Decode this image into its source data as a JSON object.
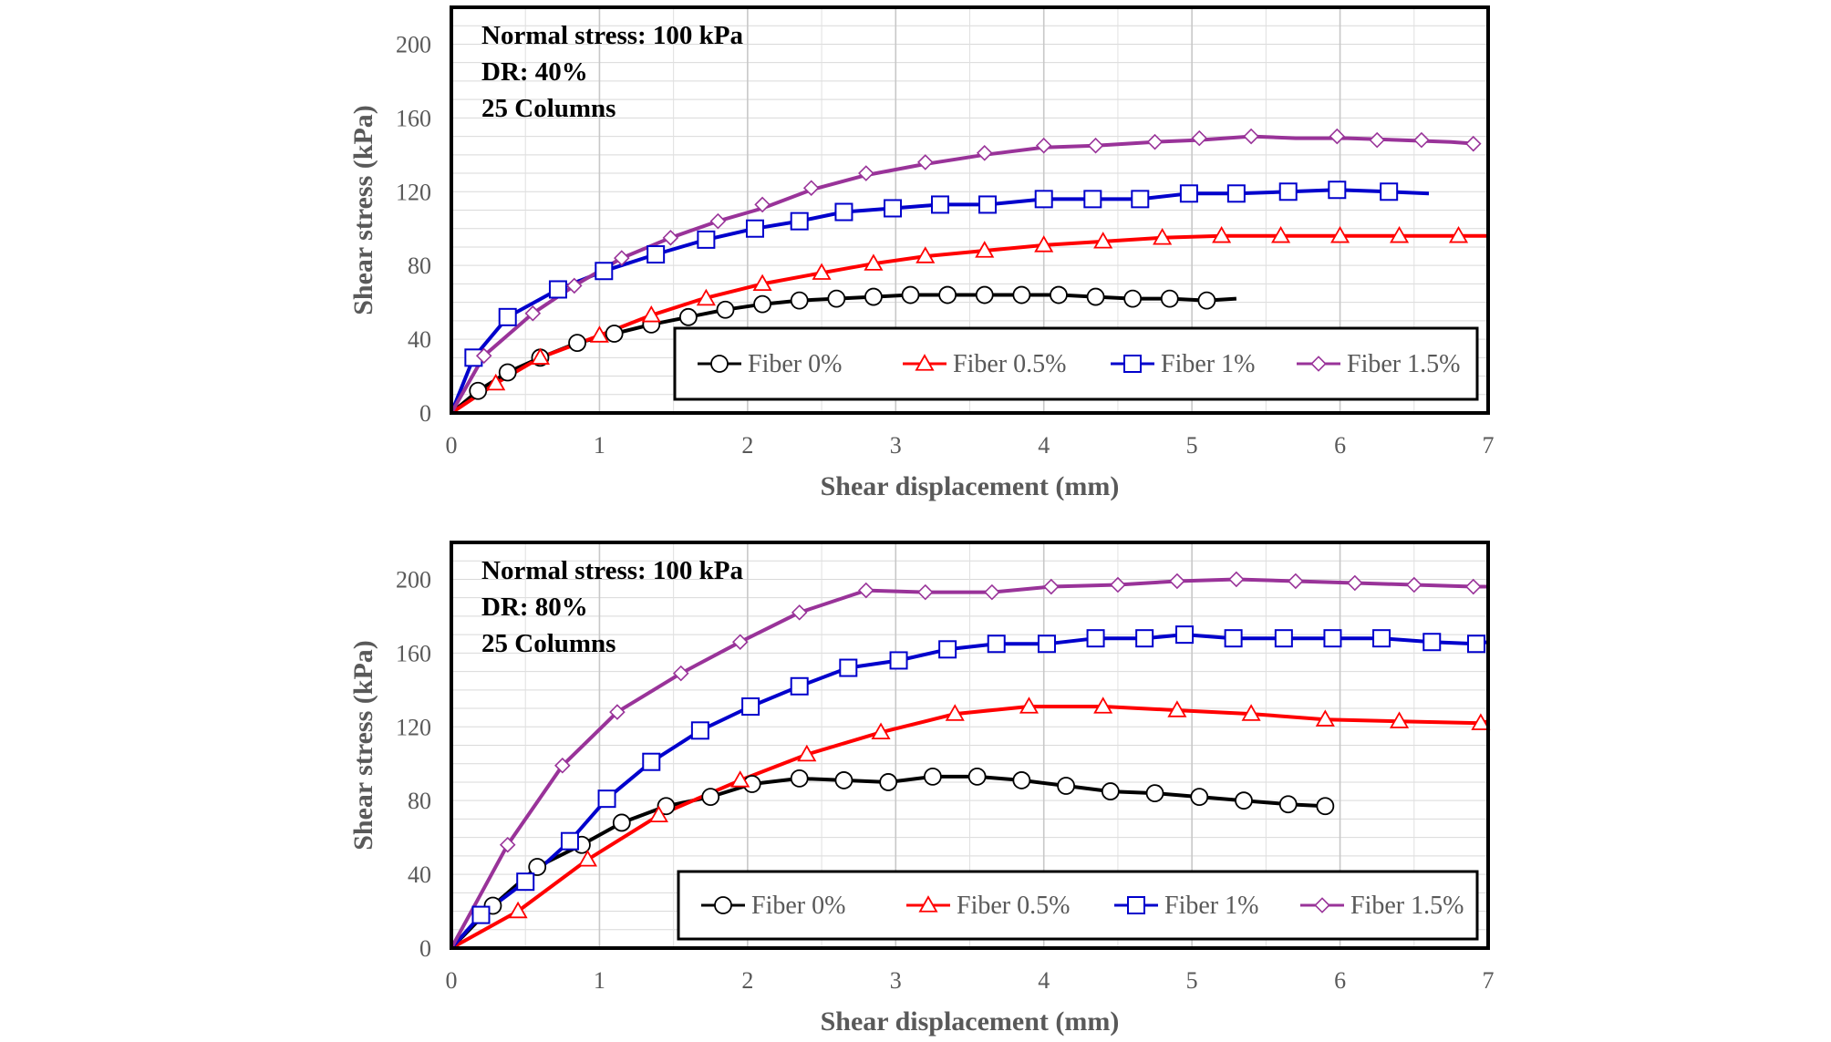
{
  "chart_data": [
    {
      "type": "line",
      "annotations": [
        "Normal stress: 100 kPa",
        "DR: 40%",
        "25 Columns"
      ],
      "xlabel": "Shear displacement (mm)",
      "ylabel": "Shear stress (kPa)",
      "xlim": [
        0,
        7
      ],
      "ylim": [
        0,
        220
      ],
      "x_ticks": [
        0,
        1,
        2,
        3,
        4,
        5,
        6,
        7
      ],
      "y_ticks": [
        0,
        40,
        80,
        120,
        160,
        200
      ],
      "grid": true,
      "legend_position": "bottom-right",
      "series": [
        {
          "name": "Fiber 0%",
          "color": "#000000",
          "marker": "circle",
          "x": [
            0,
            0.18,
            0.38,
            0.6,
            0.85,
            1.1,
            1.35,
            1.6,
            1.85,
            2.1,
            2.35,
            2.6,
            2.85,
            3.1,
            3.35,
            3.6,
            3.85,
            4.1,
            4.35,
            4.6,
            4.85,
            5.1,
            5.3
          ],
          "y": [
            0,
            12,
            22,
            30,
            38,
            43,
            48,
            52,
            56,
            59,
            61,
            62,
            63,
            64,
            64,
            64,
            64,
            64,
            63,
            62,
            62,
            61,
            62
          ],
          "marker_x": [
            0.18,
            0.38,
            0.6,
            0.85,
            1.1,
            1.35,
            1.6,
            1.85,
            2.1,
            2.35,
            2.6,
            2.85,
            3.1,
            3.35,
            3.6,
            3.85,
            4.1,
            4.35,
            4.6,
            4.85,
            5.1
          ],
          "marker_y": [
            12,
            22,
            30,
            38,
            43,
            48,
            52,
            56,
            59,
            61,
            62,
            63,
            64,
            64,
            64,
            64,
            64,
            63,
            62,
            62,
            61
          ]
        },
        {
          "name": "Fiber 0.5%",
          "color": "#ff0000",
          "marker": "triangle",
          "x": [
            0,
            0.3,
            0.6,
            1.0,
            1.35,
            1.7,
            2.1,
            2.5,
            2.85,
            3.2,
            3.6,
            4.0,
            4.4,
            4.8,
            5.2,
            5.6,
            6.0,
            6.4,
            6.8,
            7.0
          ],
          "y": [
            0,
            16,
            30,
            42,
            53,
            62,
            70,
            76,
            81,
            85,
            88,
            91,
            93,
            95,
            96,
            96,
            96,
            96,
            96,
            96
          ],
          "marker_x": [
            0.3,
            0.6,
            1.0,
            1.35,
            1.72,
            2.1,
            2.5,
            2.85,
            3.2,
            3.6,
            4.0,
            4.4,
            4.8,
            5.2,
            5.6,
            6.0,
            6.4,
            6.8
          ],
          "marker_y": [
            16,
            30,
            42,
            53,
            62,
            70,
            76,
            81,
            85,
            88,
            91,
            93,
            95,
            96,
            96,
            96,
            96,
            96
          ]
        },
        {
          "name": "Fiber 1%",
          "color": "#0000cc",
          "marker": "square",
          "x": [
            0,
            0.15,
            0.38,
            0.72,
            1.03,
            1.38,
            1.72,
            2.05,
            2.35,
            2.65,
            2.98,
            3.3,
            3.62,
            4.0,
            4.33,
            4.65,
            4.98,
            5.3,
            5.65,
            5.98,
            6.33,
            6.6
          ],
          "y": [
            0,
            30,
            52,
            67,
            77,
            86,
            94,
            100,
            104,
            109,
            111,
            113,
            113,
            116,
            116,
            116,
            119,
            119,
            120,
            121,
            120,
            119
          ],
          "marker_x": [
            0.15,
            0.38,
            0.72,
            1.03,
            1.38,
            1.72,
            2.05,
            2.35,
            2.65,
            2.98,
            3.3,
            3.62,
            4.0,
            4.33,
            4.65,
            4.98,
            5.3,
            5.65,
            5.98,
            6.33
          ],
          "marker_y": [
            30,
            52,
            67,
            77,
            86,
            94,
            100,
            104,
            109,
            111,
            113,
            113,
            116,
            116,
            116,
            119,
            119,
            120,
            121,
            120
          ]
        },
        {
          "name": "Fiber 1.5%",
          "color": "#993399",
          "marker": "diamond",
          "x": [
            0,
            0.22,
            0.55,
            0.83,
            1.15,
            1.48,
            1.8,
            2.1,
            2.43,
            2.8,
            3.2,
            3.6,
            4.0,
            4.35,
            4.75,
            5.05,
            5.4,
            5.7,
            6.05,
            6.4,
            6.75,
            6.92
          ],
          "y": [
            0,
            31,
            54,
            69,
            84,
            95,
            104,
            111,
            121,
            129,
            135,
            140,
            144,
            145,
            147,
            148,
            150,
            149,
            149,
            148,
            147,
            146
          ],
          "marker_x": [
            0.22,
            0.55,
            0.83,
            1.15,
            1.48,
            1.8,
            2.1,
            2.43,
            2.8,
            3.2,
            3.6,
            4.0,
            4.35,
            4.75,
            5.05,
            5.4,
            5.98,
            6.25,
            6.55,
            6.9
          ],
          "marker_y": [
            31,
            54,
            69,
            84,
            95,
            104,
            113,
            122,
            130,
            136,
            141,
            145,
            145,
            147,
            149,
            150,
            150,
            148,
            148,
            146
          ]
        }
      ]
    },
    {
      "type": "line",
      "annotations": [
        "Normal stress: 100 kPa",
        "DR: 80%",
        "25 Columns"
      ],
      "xlabel": "Shear displacement (mm)",
      "ylabel": "Shear stress (kPa)",
      "xlim": [
        0,
        7
      ],
      "ylim": [
        0,
        220
      ],
      "x_ticks": [
        0,
        1,
        2,
        3,
        4,
        5,
        6,
        7
      ],
      "y_ticks": [
        0,
        40,
        80,
        120,
        160,
        200
      ],
      "grid": true,
      "legend_position": "bottom-right",
      "series": [
        {
          "name": "Fiber 0%",
          "color": "#000000",
          "marker": "circle",
          "x": [
            0,
            0.28,
            0.58,
            0.88,
            1.15,
            1.45,
            1.75,
            2.03,
            2.35,
            2.65,
            2.95,
            3.25,
            3.55,
            3.85,
            4.15,
            4.45,
            4.75,
            5.05,
            5.35,
            5.65,
            5.9
          ],
          "y": [
            0,
            23,
            44,
            56,
            68,
            77,
            82,
            89,
            92,
            91,
            90,
            93,
            93,
            91,
            88,
            85,
            84,
            82,
            80,
            78,
            77
          ],
          "marker_x": [
            0.28,
            0.58,
            0.88,
            1.15,
            1.45,
            1.75,
            2.03,
            2.35,
            2.65,
            2.95,
            3.25,
            3.55,
            3.85,
            4.15,
            4.45,
            4.75,
            5.05,
            5.35,
            5.65,
            5.9
          ],
          "marker_y": [
            23,
            44,
            56,
            68,
            77,
            82,
            89,
            92,
            91,
            90,
            93,
            93,
            91,
            88,
            85,
            84,
            82,
            80,
            78,
            77
          ]
        },
        {
          "name": "Fiber 0.5%",
          "color": "#ff0000",
          "marker": "triangle",
          "x": [
            0,
            0.45,
            0.92,
            1.4,
            1.95,
            2.4,
            2.9,
            3.4,
            3.9,
            4.4,
            4.9,
            5.4,
            5.9,
            6.4,
            6.95,
            7.0
          ],
          "y": [
            0,
            20,
            48,
            72,
            91,
            105,
            117,
            127,
            131,
            131,
            129,
            127,
            124,
            123,
            122,
            123
          ],
          "marker_x": [
            0.45,
            0.92,
            1.4,
            1.95,
            2.4,
            2.9,
            3.4,
            3.9,
            4.4,
            4.9,
            5.4,
            5.9,
            6.4,
            6.95
          ],
          "marker_y": [
            20,
            48,
            72,
            91,
            105,
            117,
            127,
            131,
            131,
            129,
            127,
            124,
            123,
            122
          ]
        },
        {
          "name": "Fiber 1%",
          "color": "#0000cc",
          "marker": "square",
          "x": [
            0,
            0.2,
            0.5,
            0.8,
            1.05,
            1.35,
            1.68,
            2.02,
            2.35,
            2.68,
            3.02,
            3.35,
            3.68,
            4.02,
            4.35,
            4.68,
            4.95,
            5.28,
            5.62,
            5.95,
            6.28,
            6.62,
            6.92,
            7.0
          ],
          "y": [
            0,
            18,
            36,
            58,
            81,
            101,
            118,
            131,
            142,
            152,
            156,
            162,
            165,
            165,
            168,
            168,
            170,
            168,
            168,
            168,
            168,
            166,
            165,
            166
          ],
          "marker_x": [
            0.2,
            0.5,
            0.8,
            1.05,
            1.35,
            1.68,
            2.02,
            2.35,
            2.68,
            3.02,
            3.35,
            3.68,
            4.02,
            4.35,
            4.68,
            4.95,
            5.28,
            5.62,
            5.95,
            6.28,
            6.62,
            6.92
          ],
          "marker_y": [
            18,
            36,
            58,
            81,
            101,
            118,
            131,
            142,
            152,
            156,
            162,
            165,
            165,
            168,
            168,
            170,
            168,
            168,
            168,
            168,
            166,
            165
          ]
        },
        {
          "name": "Fiber 1.5%",
          "color": "#993399",
          "marker": "diamond",
          "x": [
            0,
            0.38,
            0.75,
            1.12,
            1.55,
            1.95,
            2.35,
            2.8,
            3.2,
            3.65,
            4.05,
            4.5,
            4.9,
            5.3,
            5.7,
            6.1,
            6.5,
            6.9,
            7.0
          ],
          "y": [
            0,
            56,
            99,
            128,
            149,
            166,
            182,
            194,
            193,
            193,
            196,
            197,
            199,
            200,
            199,
            198,
            197,
            196,
            196
          ],
          "marker_x": [
            0.38,
            0.75,
            1.12,
            1.55,
            1.95,
            2.35,
            2.8,
            3.2,
            3.65,
            4.05,
            4.5,
            4.9,
            5.3,
            5.7,
            6.1,
            6.5,
            6.9
          ],
          "marker_y": [
            56,
            99,
            128,
            149,
            166,
            182,
            194,
            193,
            193,
            196,
            197,
            199,
            200,
            199,
            198,
            197,
            196
          ]
        }
      ]
    }
  ]
}
